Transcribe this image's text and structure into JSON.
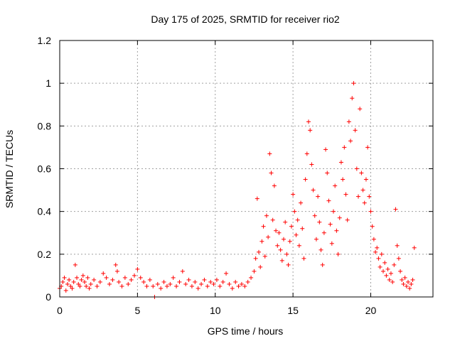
{
  "chart_data": {
    "type": "scatter",
    "title": "Day 175 of 2025, SRMTID for receiver rio2",
    "xlabel": "GPS time / hours",
    "ylabel": "SRMTID / TECUs",
    "xlim": [
      0,
      24
    ],
    "ylim": [
      0,
      1.2
    ],
    "x_ticks": [
      0,
      5,
      10,
      15,
      20
    ],
    "y_ticks": [
      0,
      0.2,
      0.4,
      0.6,
      0.8,
      1,
      1.2
    ],
    "x_tick_labels": [
      "0",
      "5",
      "10",
      "15",
      "20"
    ],
    "y_tick_labels": [
      "0",
      "0.2",
      "0.4",
      "0.6",
      "0.8",
      "1",
      "1.2"
    ],
    "grid": true,
    "marker": "+",
    "color": "#ff0000",
    "series": [
      {
        "name": "rio2",
        "points": [
          [
            0.0,
            0.04
          ],
          [
            0.1,
            0.05
          ],
          [
            0.2,
            0.07
          ],
          [
            0.3,
            0.09
          ],
          [
            0.4,
            0.03
          ],
          [
            0.5,
            0.06
          ],
          [
            0.6,
            0.08
          ],
          [
            0.7,
            0.05
          ],
          [
            0.8,
            0.04
          ],
          [
            0.9,
            0.07
          ],
          [
            1.0,
            0.15
          ],
          [
            1.1,
            0.09
          ],
          [
            1.2,
            0.06
          ],
          [
            1.3,
            0.05
          ],
          [
            1.4,
            0.08
          ],
          [
            1.5,
            0.1
          ],
          [
            1.6,
            0.07
          ],
          [
            1.7,
            0.05
          ],
          [
            1.8,
            0.09
          ],
          [
            1.9,
            0.04
          ],
          [
            2.0,
            0.06
          ],
          [
            2.2,
            0.08
          ],
          [
            2.4,
            0.05
          ],
          [
            2.6,
            0.07
          ],
          [
            2.8,
            0.11
          ],
          [
            3.0,
            0.09
          ],
          [
            3.2,
            0.06
          ],
          [
            3.4,
            0.08
          ],
          [
            3.6,
            0.15
          ],
          [
            3.7,
            0.12
          ],
          [
            3.8,
            0.07
          ],
          [
            4.0,
            0.05
          ],
          [
            4.2,
            0.09
          ],
          [
            4.4,
            0.06
          ],
          [
            4.6,
            0.08
          ],
          [
            4.8,
            0.1
          ],
          [
            5.0,
            0.13
          ],
          [
            5.2,
            0.09
          ],
          [
            5.4,
            0.07
          ],
          [
            5.6,
            0.05
          ],
          [
            5.8,
            0.08
          ],
          [
            6.0,
            0.05
          ],
          [
            6.1,
            0.0
          ],
          [
            6.3,
            0.06
          ],
          [
            6.5,
            0.04
          ],
          [
            6.7,
            0.07
          ],
          [
            6.9,
            0.05
          ],
          [
            7.1,
            0.06
          ],
          [
            7.3,
            0.09
          ],
          [
            7.5,
            0.05
          ],
          [
            7.7,
            0.07
          ],
          [
            7.9,
            0.12
          ],
          [
            8.1,
            0.06
          ],
          [
            8.3,
            0.08
          ],
          [
            8.5,
            0.05
          ],
          [
            8.7,
            0.07
          ],
          [
            8.9,
            0.04
          ],
          [
            9.1,
            0.06
          ],
          [
            9.3,
            0.08
          ],
          [
            9.5,
            0.05
          ],
          [
            9.7,
            0.07
          ],
          [
            9.9,
            0.06
          ],
          [
            10.1,
            0.08
          ],
          [
            10.3,
            0.05
          ],
          [
            10.5,
            0.07
          ],
          [
            10.7,
            0.11
          ],
          [
            10.9,
            0.06
          ],
          [
            11.1,
            0.04
          ],
          [
            11.3,
            0.07
          ],
          [
            11.5,
            0.05
          ],
          [
            11.7,
            0.06
          ],
          [
            11.9,
            0.05
          ],
          [
            12.1,
            0.07
          ],
          [
            12.3,
            0.09
          ],
          [
            12.5,
            0.12
          ],
          [
            12.6,
            0.18
          ],
          [
            12.7,
            0.46
          ],
          [
            12.8,
            0.21
          ],
          [
            12.9,
            0.14
          ],
          [
            13.0,
            0.26
          ],
          [
            13.1,
            0.33
          ],
          [
            13.2,
            0.19
          ],
          [
            13.3,
            0.38
          ],
          [
            13.4,
            0.28
          ],
          [
            13.5,
            0.67
          ],
          [
            13.6,
            0.58
          ],
          [
            13.7,
            0.36
          ],
          [
            13.8,
            0.52
          ],
          [
            13.9,
            0.31
          ],
          [
            14.0,
            0.24
          ],
          [
            14.1,
            0.3
          ],
          [
            14.2,
            0.22
          ],
          [
            14.3,
            0.17
          ],
          [
            14.4,
            0.27
          ],
          [
            14.5,
            0.35
          ],
          [
            14.6,
            0.2
          ],
          [
            14.7,
            0.15
          ],
          [
            14.8,
            0.26
          ],
          [
            14.9,
            0.33
          ],
          [
            15.0,
            0.48
          ],
          [
            15.1,
            0.4
          ],
          [
            15.2,
            0.29
          ],
          [
            15.3,
            0.36
          ],
          [
            15.4,
            0.24
          ],
          [
            15.5,
            0.44
          ],
          [
            15.6,
            0.32
          ],
          [
            15.7,
            0.18
          ],
          [
            15.8,
            0.55
          ],
          [
            15.9,
            0.67
          ],
          [
            16.0,
            0.82
          ],
          [
            16.1,
            0.78
          ],
          [
            16.2,
            0.62
          ],
          [
            16.3,
            0.5
          ],
          [
            16.4,
            0.38
          ],
          [
            16.5,
            0.27
          ],
          [
            16.6,
            0.47
          ],
          [
            16.7,
            0.35
          ],
          [
            16.8,
            0.22
          ],
          [
            16.9,
            0.15
          ],
          [
            17.0,
            0.3
          ],
          [
            17.1,
            0.69
          ],
          [
            17.2,
            0.58
          ],
          [
            17.3,
            0.45
          ],
          [
            17.4,
            0.34
          ],
          [
            17.5,
            0.25
          ],
          [
            17.6,
            0.4
          ],
          [
            17.7,
            0.52
          ],
          [
            17.8,
            0.31
          ],
          [
            17.9,
            0.2
          ],
          [
            18.0,
            0.37
          ],
          [
            18.1,
            0.63
          ],
          [
            18.2,
            0.55
          ],
          [
            18.3,
            0.7
          ],
          [
            18.4,
            0.48
          ],
          [
            18.5,
            0.36
          ],
          [
            18.6,
            0.82
          ],
          [
            18.7,
            0.73
          ],
          [
            18.8,
            0.93
          ],
          [
            18.9,
            1.0
          ],
          [
            19.0,
            0.78
          ],
          [
            19.1,
            0.6
          ],
          [
            19.2,
            0.47
          ],
          [
            19.3,
            0.88
          ],
          [
            19.4,
            0.58
          ],
          [
            19.5,
            0.5
          ],
          [
            19.6,
            0.44
          ],
          [
            19.7,
            0.55
          ],
          [
            19.8,
            0.7
          ],
          [
            19.9,
            0.47
          ],
          [
            20.0,
            0.4
          ],
          [
            20.1,
            0.33
          ],
          [
            20.2,
            0.27
          ],
          [
            20.3,
            0.21
          ],
          [
            20.4,
            0.23
          ],
          [
            20.5,
            0.18
          ],
          [
            20.6,
            0.14
          ],
          [
            20.7,
            0.2
          ],
          [
            20.8,
            0.12
          ],
          [
            20.9,
            0.16
          ],
          [
            21.0,
            0.1
          ],
          [
            21.1,
            0.13
          ],
          [
            21.2,
            0.08
          ],
          [
            21.3,
            0.11
          ],
          [
            21.4,
            0.07
          ],
          [
            21.5,
            0.15
          ],
          [
            21.6,
            0.41
          ],
          [
            21.7,
            0.24
          ],
          [
            21.8,
            0.18
          ],
          [
            21.9,
            0.12
          ],
          [
            22.0,
            0.08
          ],
          [
            22.1,
            0.06
          ],
          [
            22.2,
            0.09
          ],
          [
            22.3,
            0.05
          ],
          [
            22.4,
            0.07
          ],
          [
            22.5,
            0.04
          ],
          [
            22.6,
            0.06
          ],
          [
            22.7,
            0.08
          ],
          [
            22.8,
            0.23
          ]
        ]
      }
    ]
  }
}
